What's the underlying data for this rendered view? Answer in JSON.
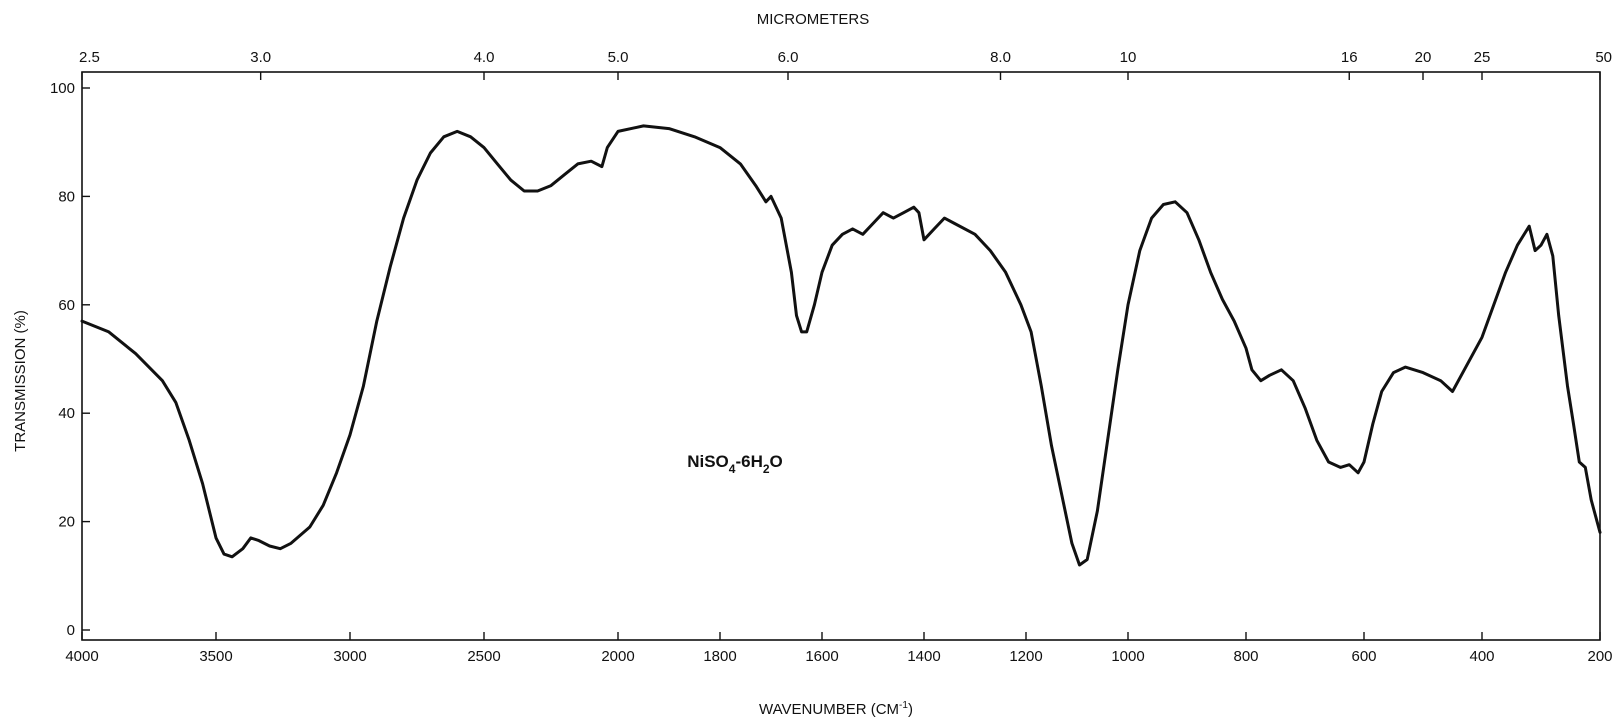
{
  "chart_data": {
    "type": "line",
    "title": "",
    "annotation": {
      "base": "NiSO",
      "sub1": "4",
      "mid": "-6H",
      "sub2": "2",
      "end": "O"
    },
    "xlabel": "WAVENUMBER (CM-1)",
    "xlabel_parts": {
      "main": "WAVENUMBER (CM",
      "sup": "-1",
      "end": ")"
    },
    "ylabel": "TRANSMISSION (%)",
    "top_axis_label": "MICROMETERS",
    "xlim": [
      4000,
      200
    ],
    "ylim": [
      0,
      100
    ],
    "x_ticks": [
      4000,
      3500,
      3000,
      2500,
      2000,
      1800,
      1600,
      1400,
      1200,
      1000,
      800,
      600,
      400,
      200
    ],
    "y_ticks": [
      0,
      20,
      40,
      60,
      80,
      100
    ],
    "top_ticks": [
      "2.5",
      "3.0",
      "4.0",
      "5.0",
      "6.0",
      "8.0",
      "10",
      "16",
      "20",
      "25",
      "50"
    ],
    "grid": false,
    "series": [
      {
        "points": [
          [
            4000,
            57
          ],
          [
            3900,
            55
          ],
          [
            3800,
            51
          ],
          [
            3700,
            46
          ],
          [
            3650,
            42
          ],
          [
            3600,
            35
          ],
          [
            3550,
            27
          ],
          [
            3500,
            17
          ],
          [
            3470,
            14
          ],
          [
            3440,
            13.5
          ],
          [
            3400,
            15
          ],
          [
            3370,
            17
          ],
          [
            3340,
            16.5
          ],
          [
            3300,
            15.5
          ],
          [
            3260,
            15
          ],
          [
            3220,
            16
          ],
          [
            3150,
            19
          ],
          [
            3100,
            23
          ],
          [
            3050,
            29
          ],
          [
            3000,
            36
          ],
          [
            2950,
            45
          ],
          [
            2900,
            57
          ],
          [
            2850,
            67
          ],
          [
            2800,
            76
          ],
          [
            2750,
            83
          ],
          [
            2700,
            88
          ],
          [
            2650,
            91
          ],
          [
            2600,
            92
          ],
          [
            2550,
            91
          ],
          [
            2500,
            89
          ],
          [
            2450,
            86
          ],
          [
            2400,
            83
          ],
          [
            2350,
            81
          ],
          [
            2300,
            81
          ],
          [
            2250,
            82
          ],
          [
            2200,
            84
          ],
          [
            2150,
            86
          ],
          [
            2100,
            86.5
          ],
          [
            2060,
            85.5
          ],
          [
            2040,
            89
          ],
          [
            2000,
            92
          ],
          [
            1950,
            93
          ],
          [
            1900,
            92.5
          ],
          [
            1850,
            91
          ],
          [
            1800,
            89
          ],
          [
            1760,
            86
          ],
          [
            1730,
            82
          ],
          [
            1710,
            79
          ],
          [
            1700,
            80
          ],
          [
            1680,
            76
          ],
          [
            1660,
            66
          ],
          [
            1650,
            58
          ],
          [
            1640,
            55
          ],
          [
            1630,
            55
          ],
          [
            1615,
            60
          ],
          [
            1600,
            66
          ],
          [
            1580,
            71
          ],
          [
            1560,
            73
          ],
          [
            1540,
            74
          ],
          [
            1520,
            73
          ],
          [
            1500,
            75
          ],
          [
            1480,
            77
          ],
          [
            1460,
            76
          ],
          [
            1440,
            77
          ],
          [
            1420,
            78
          ],
          [
            1410,
            77
          ],
          [
            1400,
            72
          ],
          [
            1380,
            74
          ],
          [
            1360,
            76
          ],
          [
            1340,
            75
          ],
          [
            1300,
            73
          ],
          [
            1270,
            70
          ],
          [
            1240,
            66
          ],
          [
            1210,
            60
          ],
          [
            1190,
            55
          ],
          [
            1170,
            45
          ],
          [
            1150,
            34
          ],
          [
            1130,
            25
          ],
          [
            1110,
            16
          ],
          [
            1095,
            12
          ],
          [
            1080,
            13
          ],
          [
            1060,
            22
          ],
          [
            1040,
            35
          ],
          [
            1020,
            48
          ],
          [
            1000,
            60
          ],
          [
            980,
            70
          ],
          [
            960,
            76
          ],
          [
            940,
            78.5
          ],
          [
            920,
            79
          ],
          [
            900,
            77
          ],
          [
            880,
            72
          ],
          [
            860,
            66
          ],
          [
            840,
            61
          ],
          [
            820,
            57
          ],
          [
            800,
            52
          ],
          [
            790,
            48
          ],
          [
            775,
            46
          ],
          [
            760,
            47
          ],
          [
            740,
            48
          ],
          [
            720,
            46
          ],
          [
            700,
            41
          ],
          [
            680,
            35
          ],
          [
            660,
            31
          ],
          [
            640,
            30
          ],
          [
            625,
            30.5
          ],
          [
            610,
            29
          ],
          [
            600,
            31
          ],
          [
            585,
            38
          ],
          [
            570,
            44
          ],
          [
            550,
            47.5
          ],
          [
            530,
            48.5
          ],
          [
            500,
            47.5
          ],
          [
            470,
            46
          ],
          [
            450,
            44
          ],
          [
            430,
            48
          ],
          [
            400,
            54
          ],
          [
            380,
            60
          ],
          [
            360,
            66
          ],
          [
            340,
            71
          ],
          [
            320,
            74.5
          ],
          [
            310,
            70
          ],
          [
            300,
            71
          ],
          [
            290,
            73
          ],
          [
            280,
            69
          ],
          [
            270,
            58
          ],
          [
            255,
            45
          ],
          [
            245,
            38
          ],
          [
            235,
            31
          ],
          [
            225,
            30
          ],
          [
            215,
            24
          ],
          [
            200,
            18
          ]
        ]
      }
    ]
  }
}
